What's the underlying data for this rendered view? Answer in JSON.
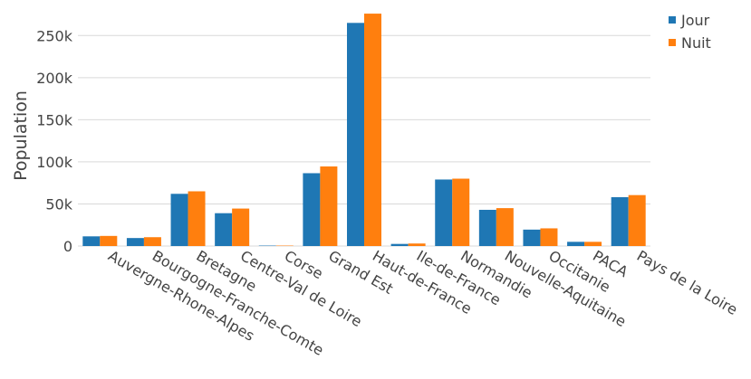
{
  "chart_data": {
    "type": "bar",
    "title": "",
    "xlabel": "",
    "ylabel": "Population",
    "ylim": [
      0,
      275000
    ],
    "yticks": [
      0,
      50000,
      100000,
      150000,
      200000,
      250000
    ],
    "ytick_labels": [
      "0",
      "50k",
      "100k",
      "150k",
      "200k",
      "250k"
    ],
    "grid": true,
    "legend_position": "top-right",
    "categories": [
      "Auvergne-Rhone-Alpes",
      "Bourgogne-Franche-Comte",
      "Bretagne",
      "Centre-Val de Loire",
      "Corse",
      "Grand Est",
      "Haut-de-France",
      "Ile-de-France",
      "Normandie",
      "Nouvelle-Aquitaine",
      "Occitanie",
      "PACA",
      "Pays de la Loire"
    ],
    "series": [
      {
        "name": "Jour",
        "color": "#1f77b4",
        "values": [
          11500,
          9500,
          62000,
          39000,
          500,
          86500,
          265000,
          2500,
          79000,
          43000,
          19500,
          5000,
          58000
        ]
      },
      {
        "name": "Nuit",
        "color": "#ff7f0e",
        "values": [
          12000,
          10500,
          65000,
          44500,
          500,
          94500,
          276000,
          3000,
          80000,
          45000,
          21000,
          5000,
          60500
        ]
      }
    ]
  }
}
